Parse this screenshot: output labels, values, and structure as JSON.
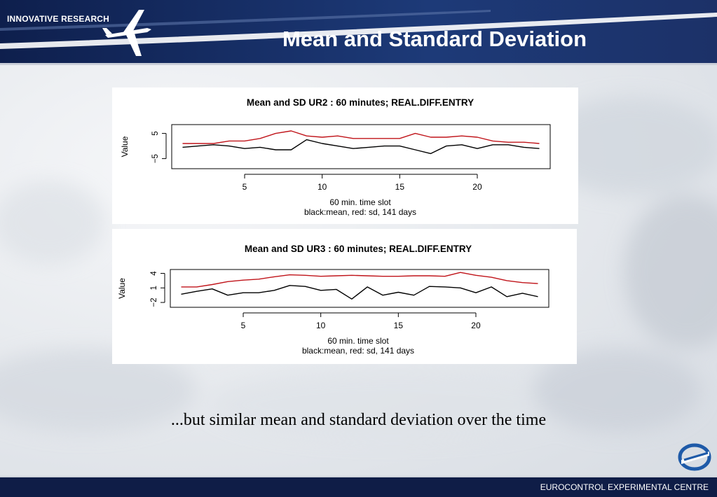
{
  "header": {
    "brand": "INNOVATIVE RESEARCH",
    "title": "Mean and Standard Deviation"
  },
  "caption": "...but similar mean and standard deviation over the time",
  "footer": {
    "text": "EUROCONTROL EXPERIMENTAL CENTRE"
  },
  "colors": {
    "mean": "#000000",
    "sd": "#c0141a",
    "header": "#1d3a78",
    "footer": "#0f1d47"
  },
  "icons": {
    "brand_mark": "airplane-icon",
    "logo": "eurocontrol-logo-icon"
  },
  "chart_data": [
    {
      "type": "line",
      "title": "Mean and SD UR2 : 60 minutes; REAL.DIFF.ENTRY",
      "xlabel": "60 min. time slot",
      "xlabel2": "black:mean, red: sd, 141 days",
      "ylabel": "Value",
      "xticks": [
        5,
        10,
        15,
        20
      ],
      "yticks": [
        -5,
        5
      ],
      "xlim": [
        0.3,
        24.7
      ],
      "ylim": [
        -9,
        8.5
      ],
      "grid": false,
      "x": [
        1,
        2,
        3,
        4,
        5,
        6,
        7,
        8,
        9,
        10,
        11,
        12,
        13,
        14,
        15,
        16,
        17,
        18,
        19,
        20,
        21,
        22,
        23,
        24
      ],
      "series": [
        {
          "color": "#000000",
          "values": [
            -0.5,
            0,
            0.5,
            0,
            -1,
            -0.5,
            -1.5,
            -1.5,
            2.5,
            1,
            0,
            -1,
            -0.5,
            0,
            0,
            -1.5,
            -3,
            0,
            0.5,
            -1,
            0.5,
            0.5,
            -0.5,
            -1
          ]
        },
        {
          "color": "#c0141a",
          "values": [
            1,
            1,
            1,
            2,
            2,
            3,
            5,
            6,
            4,
            3.5,
            4,
            3,
            3,
            3,
            3,
            5,
            3.5,
            3.5,
            4,
            3.5,
            2,
            1.5,
            1.5,
            1
          ]
        }
      ]
    },
    {
      "type": "line",
      "title": "Mean and SD UR3 : 60 minutes; REAL.DIFF.ENTRY",
      "xlabel": "60 min. time slot",
      "xlabel2": "black:mean, red: sd, 141 days",
      "ylabel": "Value",
      "xticks": [
        5,
        10,
        15,
        20
      ],
      "yticks": [
        -2,
        1,
        4
      ],
      "xlim": [
        0.3,
        24.7
      ],
      "ylim": [
        -3,
        4.8
      ],
      "grid": false,
      "x": [
        1,
        2,
        3,
        4,
        5,
        6,
        7,
        8,
        9,
        10,
        11,
        12,
        13,
        14,
        15,
        16,
        17,
        18,
        19,
        20,
        21,
        22,
        23,
        24
      ],
      "series": [
        {
          "color": "#000000",
          "values": [
            -0.3,
            0.3,
            0.8,
            -0.5,
            0,
            0,
            0.5,
            1.5,
            1.3,
            0.5,
            0.7,
            -1.3,
            1.2,
            -0.5,
            0.1,
            -0.5,
            1.3,
            1.2,
            1,
            0,
            1.2,
            -0.8,
            -0.1,
            -0.8
          ]
        },
        {
          "color": "#c0141a",
          "values": [
            1.2,
            1.2,
            1.7,
            2.3,
            2.6,
            2.8,
            3.3,
            3.7,
            3.6,
            3.4,
            3.5,
            3.6,
            3.5,
            3.4,
            3.4,
            3.5,
            3.5,
            3.4,
            4.2,
            3.6,
            3.2,
            2.5,
            2.1,
            1.9
          ]
        }
      ]
    }
  ]
}
